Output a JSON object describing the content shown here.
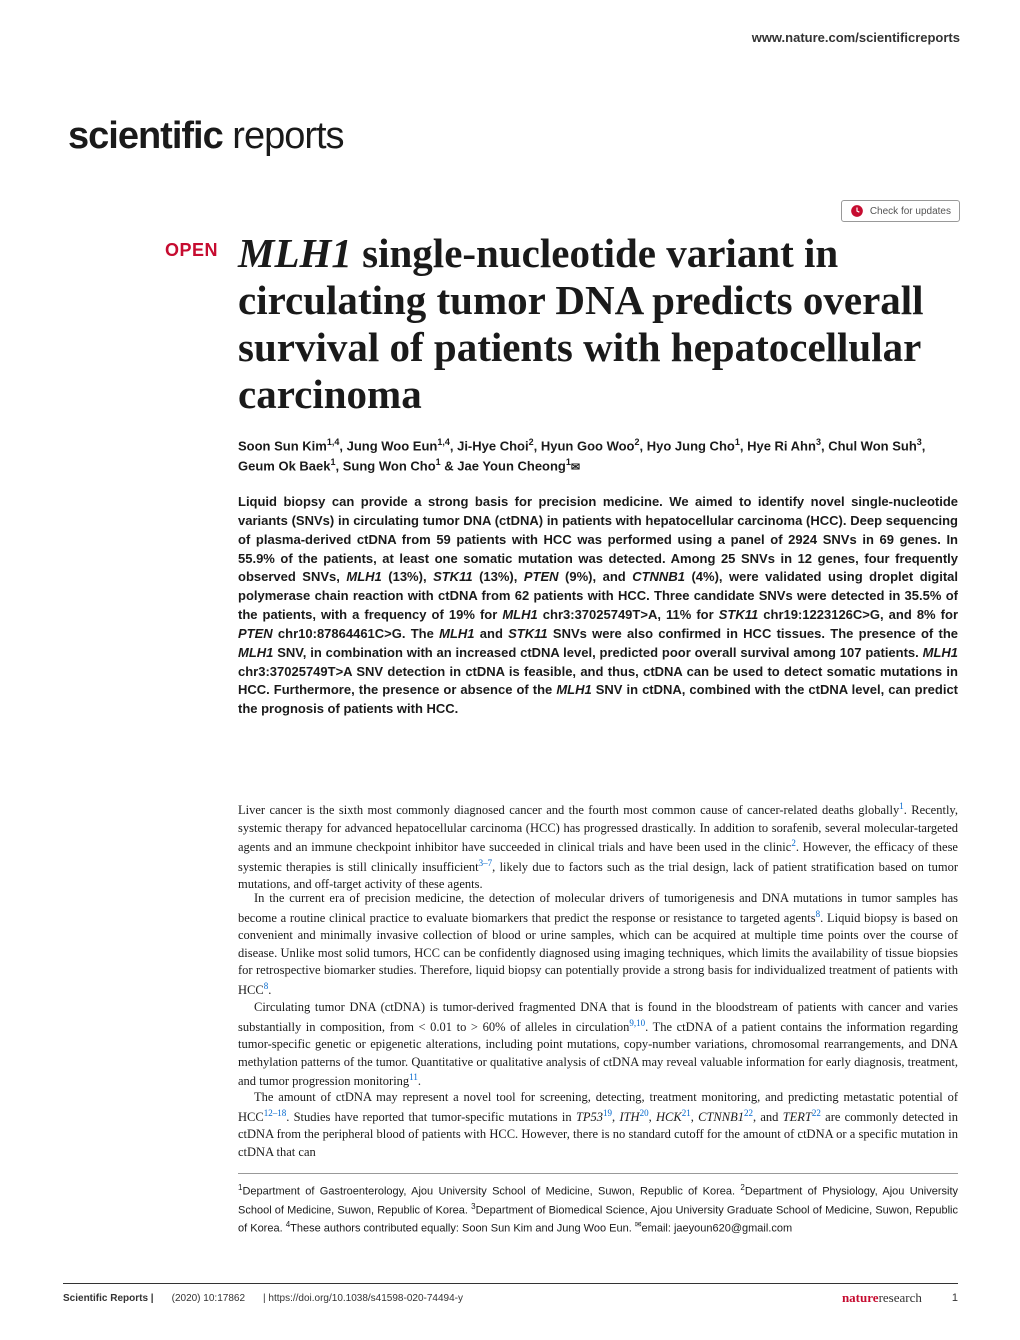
{
  "header": {
    "url": "www.nature.com/scientificreports",
    "journal_bold": "scientific",
    "journal_light": " reports",
    "check_updates": "Check for updates"
  },
  "article": {
    "open_label": "OPEN",
    "title_italic": "MLH1",
    "title_rest": " single-nucleotide variant in circulating tumor DNA predicts overall survival of patients with hepatocellular carcinoma",
    "authors_html": "Soon Sun Kim<sup>1,4</sup>, Jung Woo Eun<sup>1,4</sup>, Ji-Hye Choi<sup>2</sup>, Hyun Goo Woo<sup>2</sup>, Hyo Jung Cho<sup>1</sup>, Hye Ri Ahn<sup>3</sup>, Chul Won Suh<sup>3</sup>, Geum Ok Baek<sup>1</sup>, Sung Won Cho<sup>1</sup> & Jae Youn Cheong<sup>1</sup><span class=\"corr-icon\">✉</span>",
    "abstract_html": "Liquid biopsy can provide a strong basis for precision medicine. We aimed to identify novel single-nucleotide variants (SNVs) in circulating tumor DNA (ctDNA) in patients with hepatocellular carcinoma (HCC). Deep sequencing of plasma-derived ctDNA from 59 patients with HCC was performed using a panel of 2924 SNVs in 69 genes. In 55.9% of the patients, at least one somatic mutation was detected. Among 25 SNVs in 12 genes, four frequently observed SNVs, <span class=\"italic\">MLH1</span> (13%), <span class=\"italic\">STK11</span> (13%), <span class=\"italic\">PTEN</span> (9%), and <span class=\"italic\">CTNNB1</span> (4%), were validated using droplet digital polymerase chain reaction with ctDNA from 62 patients with HCC. Three candidate SNVs were detected in 35.5% of the patients, with a frequency of 19% for <span class=\"italic\">MLH1</span> chr3:37025749T>A, 11% for <span class=\"italic\">STK11</span> chr19:1223126C>G, and 8% for <span class=\"italic\">PTEN</span> chr10:87864461C>G. The <span class=\"italic\">MLH1</span> and <span class=\"italic\">STK11</span> SNVs were also confirmed in HCC tissues. The presence of the <span class=\"italic\">MLH1</span> SNV, in combination with an increased ctDNA level, predicted poor overall survival among 107 patients. <span class=\"italic\">MLH1</span> chr3:37025749T>A SNV detection in ctDNA is feasible, and thus, ctDNA can be used to detect somatic mutations in HCC. Furthermore, the presence or absence of the <span class=\"italic\">MLH1</span> SNV in ctDNA, combined with the ctDNA level, can predict the prognosis of patients with HCC.",
    "para1_html": "Liver cancer is the sixth most commonly diagnosed cancer and the fourth most common cause of cancer-related deaths globally<span class=\"ref\">1</span>. Recently, systemic therapy for advanced hepatocellular carcinoma (HCC) has progressed drastically. In addition to sorafenib, several molecular-targeted agents and an immune checkpoint inhibitor have succeeded in clinical trials and have been used in the clinic<span class=\"ref\">2</span>. However, the efficacy of these systemic therapies is still clinically insufficient<span class=\"ref\">3–7</span>, likely due to factors such as the trial design, lack of patient stratification based on tumor mutations, and off-target activity of these agents.",
    "para2_html": "In the current era of precision medicine, the detection of molecular drivers of tumorigenesis and DNA mutations in tumor samples has become a routine clinical practice to evaluate biomarkers that predict the response or resistance to targeted agents<span class=\"ref\">8</span>. Liquid biopsy is based on convenient and minimally invasive collection of blood or urine samples, which can be acquired at multiple time points over the course of disease. Unlike most solid tumors, HCC can be confidently diagnosed using imaging techniques, which limits the availability of tissue biopsies for retrospective biomarker studies. Therefore, liquid biopsy can potentially provide a strong basis for individualized treatment of patients with HCC<span class=\"ref\">8</span>.",
    "para3_html": "Circulating tumor DNA (ctDNA) is tumor-derived fragmented DNA that is found in the bloodstream of patients with cancer and varies substantially in composition, from < 0.01 to > 60% of alleles in circulation<span class=\"ref\">9,10</span>. The ctDNA of a patient contains the information regarding tumor-specific genetic or epigenetic alterations, including point mutations, copy-number variations, chromosomal rearrangements, and DNA methylation patterns of the tumor. Quantitative or qualitative analysis of ctDNA may reveal valuable information for early diagnosis, treatment, and tumor progression monitoring<span class=\"ref\">11</span>.",
    "para4_html": "The amount of ctDNA may represent a novel tool for screening, detecting, treatment monitoring, and predicting metastatic potential of HCC<span class=\"ref\">12–18</span>. Studies have reported that tumor-specific mutations in <span class=\"italic\">TP53</span><span class=\"ref\">19</span>, <span class=\"italic\">ITH</span><span class=\"ref\">20</span>, <span class=\"italic\">HCK</span><span class=\"ref\">21</span>, <span class=\"italic\">CTNNB1</span><span class=\"ref\">22</span>, and <span class=\"italic\">TERT</span><span class=\"ref\">22</span> are commonly detected in ctDNA from the peripheral blood of patients with HCC. However, there is no standard cutoff for the amount of ctDNA or a specific mutation in ctDNA that can",
    "affiliations_html": "<sup>1</sup>Department of Gastroenterology, Ajou University School of Medicine, Suwon, Republic of Korea. <sup>2</sup>Department of Physiology, Ajou University School of Medicine, Suwon, Republic of Korea. <sup>3</sup>Department of Biomedical Science, Ajou University Graduate School of Medicine, Suwon, Republic of Korea. <sup>4</sup>These authors contributed equally: Soon Sun Kim and Jung Woo Eun. <sup>✉</sup>email: jaeyoun620@gmail.com"
  },
  "footer": {
    "journal": "Scientific Reports |",
    "citation": "(2020) 10:17862",
    "doi": "| https://doi.org/10.1038/s41598-020-74494-y",
    "logo_left": "nature",
    "logo_right": "research",
    "page": "1"
  },
  "colors": {
    "accent": "#c60c30",
    "link": "#0066cc",
    "text": "#1a1a1a",
    "rule": "#999999"
  }
}
